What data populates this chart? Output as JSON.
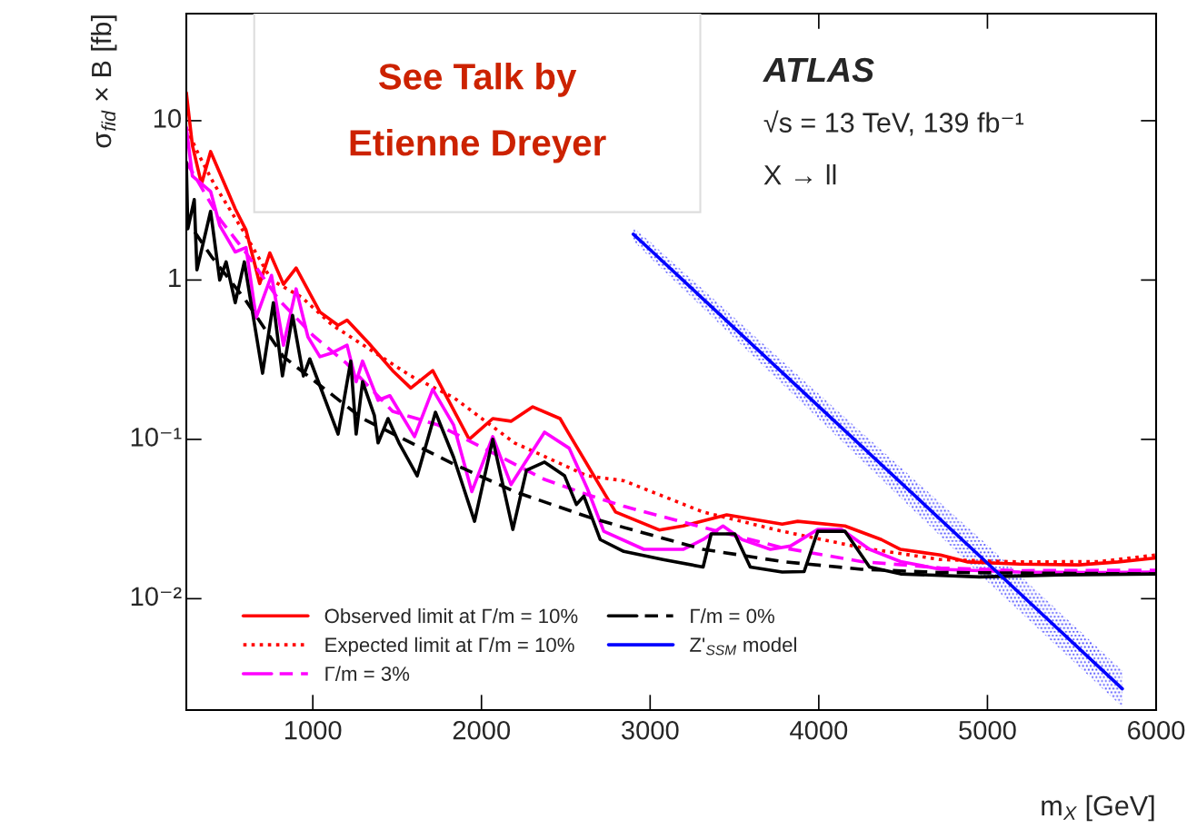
{
  "chart_data": {
    "type": "line",
    "xlabel": "m$_{X}$ [GeV]",
    "ylabel": "σ$_{fid}$ × B [fb]",
    "log": "y",
    "xlim": [
      250,
      6000
    ],
    "xticks": [
      1000,
      2000,
      3000,
      4000,
      5000,
      6000
    ],
    "ylim": [
      0.002,
      47
    ],
    "yticks": [
      {
        "value": 0.01,
        "label": "10⁻²"
      },
      {
        "value": 0.1,
        "label": "10⁻¹"
      },
      1,
      10
    ],
    "legend": "bottom left",
    "annotations": [
      "See Talk by",
      "Etienne Dreyer",
      "ATLAS",
      "√s = 13 TeV, 139 fb⁻¹",
      "X → ll"
    ],
    "series": [
      {
        "name": "Observed limit at Γ/m = 10%",
        "color": "#ff0000",
        "line_style": "solid",
        "x": [
          250,
          286,
          340,
          394,
          540,
          604,
          685,
          745,
          826,
          901,
          1042,
          1150,
          1203,
          1333,
          1473,
          1581,
          1711,
          1927,
          2067,
          2175,
          2304,
          2466,
          2515,
          2655,
          2795,
          3054,
          3195,
          3454,
          3783,
          3875,
          4155,
          4371,
          4485,
          4722,
          4884,
          5191,
          5542,
          5774,
          6000
        ],
        "values": [
          15,
          7,
          4.0,
          6.4,
          2.8,
          2.06,
          0.95,
          1.48,
          0.94,
          1.19,
          0.63,
          0.52,
          0.56,
          0.4,
          0.27,
          0.21,
          0.27,
          0.1,
          0.135,
          0.13,
          0.16,
          0.135,
          0.11,
          0.062,
          0.035,
          0.027,
          0.0286,
          0.0336,
          0.0294,
          0.0306,
          0.0286,
          0.0235,
          0.0204,
          0.0188,
          0.017,
          0.0165,
          0.0163,
          0.017,
          0.018
        ]
      },
      {
        "name": "Expected limit at Γ/m = 10%",
        "color": "#ff0000",
        "line_style": "dotted",
        "x": [
          250,
          324,
          415,
          604,
          755,
          934,
          1117,
          1387,
          1581,
          1835,
          2196,
          2628,
          2844,
          3314,
          3783,
          4253,
          4722,
          5191,
          5661,
          6000
        ],
        "values": [
          9,
          6.1,
          4.0,
          1.9,
          1.0,
          0.78,
          0.52,
          0.34,
          0.25,
          0.183,
          0.095,
          0.059,
          0.055,
          0.035,
          0.0265,
          0.0209,
          0.0176,
          0.017,
          0.0171,
          0.0188
        ]
      },
      {
        "name": "Γ/m = 3%",
        "color": "#ff00ff",
        "line_style": "solid",
        "x": [
          250,
          286,
          394,
          448,
          540,
          604,
          664,
          755,
          826,
          901,
          971,
          1042,
          1117,
          1203,
          1257,
          1295,
          1387,
          1457,
          1603,
          1711,
          1835,
          1943,
          2067,
          2175,
          2374,
          2520,
          2628,
          2725,
          2963,
          3195,
          3314,
          3432,
          3546,
          3713,
          3832,
          3994,
          4134,
          4301,
          4485,
          4722,
          5191,
          5661,
          6000
        ],
        "values": [
          9.1,
          4.5,
          3.6,
          2.2,
          1.5,
          1.6,
          0.58,
          1.07,
          0.39,
          0.88,
          0.44,
          0.33,
          0.35,
          0.39,
          0.23,
          0.31,
          0.176,
          0.188,
          0.104,
          0.206,
          0.123,
          0.047,
          0.104,
          0.052,
          0.111,
          0.088,
          0.049,
          0.0265,
          0.0204,
          0.0204,
          0.0235,
          0.0286,
          0.0235,
          0.0204,
          0.0214,
          0.0272,
          0.0272,
          0.0204,
          0.0171,
          0.0153,
          0.0147,
          0.0146,
          0.0147
        ]
      },
      {
        "color": "#ff00ff",
        "line_style": "dashed",
        "x": [
          250,
          300,
          450,
          600,
          800,
          1000,
          1200,
          1473,
          1743,
          2013,
          2374,
          2628,
          2844,
          3314,
          3783,
          4253,
          4722,
          5191,
          6000
        ],
        "values": [
          5.5,
          4.5,
          2.4,
          1.5,
          0.75,
          0.45,
          0.3,
          0.15,
          0.123,
          0.088,
          0.056,
          0.045,
          0.038,
          0.028,
          0.0209,
          0.0171,
          0.0156,
          0.015,
          0.0151
        ]
      },
      {
        "name": "Γ/m = 0%",
        "color": "#000000",
        "line_style": "solid",
        "x": [
          250,
          259,
          297,
          313,
          394,
          448,
          486,
          540,
          594,
          648,
          702,
          766,
          820,
          880,
          944,
          982,
          1150,
          1225,
          1257,
          1295,
          1365,
          1387,
          1446,
          1511,
          1619,
          1727,
          1835,
          1959,
          2067,
          2186,
          2267,
          2374,
          2493,
          2563,
          2607,
          2704,
          2844,
          3076,
          3314,
          3362,
          3502,
          3594,
          3783,
          3913,
          3994,
          4155,
          4301,
          4485,
          4954,
          5424,
          6000
        ],
        "values": [
          5.5,
          2.1,
          3.2,
          1.16,
          2.7,
          1.0,
          1.3,
          0.72,
          1.3,
          0.58,
          0.26,
          0.72,
          0.25,
          0.6,
          0.25,
          0.32,
          0.108,
          0.31,
          0.108,
          0.23,
          0.141,
          0.095,
          0.135,
          0.095,
          0.059,
          0.148,
          0.077,
          0.0306,
          0.1,
          0.0272,
          0.064,
          0.072,
          0.059,
          0.039,
          0.044,
          0.0235,
          0.0198,
          0.0176,
          0.0158,
          0.0255,
          0.0255,
          0.0158,
          0.0147,
          0.0148,
          0.0265,
          0.0265,
          0.0158,
          0.0143,
          0.0137,
          0.0141,
          0.0143
        ]
      },
      {
        "color": "#000000",
        "line_style": "dashed",
        "x": [
          300,
          400,
          600,
          826,
          1295,
          1835,
          2196,
          2628,
          2844,
          3314,
          3783,
          4253,
          4722,
          6000
        ],
        "values": [
          2.0,
          1.4,
          0.75,
          0.33,
          0.135,
          0.07,
          0.047,
          0.0327,
          0.028,
          0.0204,
          0.0171,
          0.0153,
          0.0146,
          0.0143
        ]
      },
      {
        "name": "Z'$_{SSM}$ model",
        "color": "#0000ff",
        "line_style": "solid",
        "x": [
          2900,
          3000,
          4000,
          5000,
          5800
        ],
        "values": [
          1.94,
          1.55,
          0.161,
          0.0167,
          0.00272
        ],
        "lower": [
          1.76,
          1.38,
          0.134,
          0.0128,
          0.00209
        ],
        "upper": [
          2.13,
          1.74,
          0.193,
          0.0217,
          0.00354
        ]
      }
    ]
  }
}
